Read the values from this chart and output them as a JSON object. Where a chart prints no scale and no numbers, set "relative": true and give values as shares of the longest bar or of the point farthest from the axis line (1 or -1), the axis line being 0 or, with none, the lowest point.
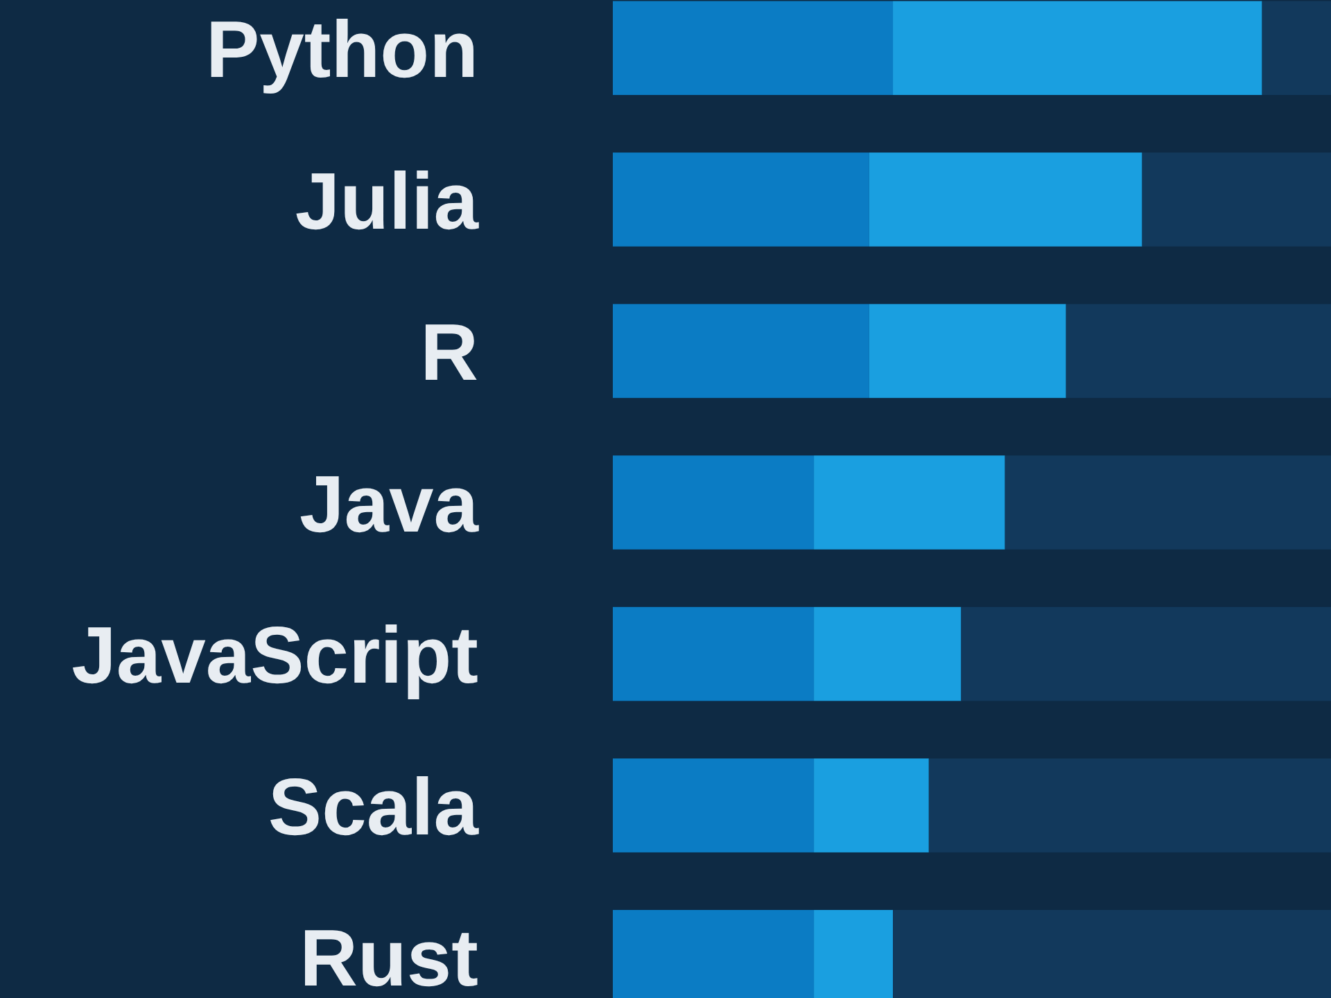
{
  "chart_data": {
    "type": "bar",
    "orientation": "horizontal",
    "stacked": true,
    "relative": true,
    "categories": [
      "Python",
      "Julia",
      "R",
      "Java",
      "JavaScript",
      "Scala",
      "Rust"
    ],
    "series": [
      {
        "color": "#0b7cc4",
        "values": [
          0.39,
          0.357,
          0.357,
          0.28,
          0.28,
          0.28,
          0.28
        ]
      },
      {
        "color": "#1a9fe0",
        "values": [
          0.514,
          0.38,
          0.274,
          0.266,
          0.205,
          0.16,
          0.11
        ]
      },
      {
        "color": "#12395c",
        "values": [
          0.096,
          0.263,
          0.369,
          0.454,
          0.515,
          0.56,
          0.61
        ]
      }
    ]
  }
}
